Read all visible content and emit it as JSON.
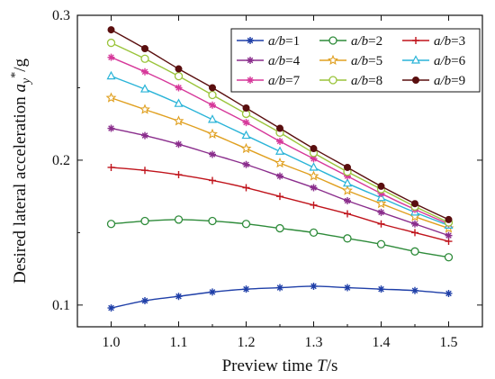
{
  "chart_data": {
    "type": "line",
    "xlabel": "Preview time T/s",
    "ylabel": "Desired lateral acceleration a_y*/g",
    "xlim": [
      0.95,
      1.55
    ],
    "ylim": [
      0.085,
      0.3
    ],
    "xticks": [
      "1.0",
      "1.1",
      "1.2",
      "1.3",
      "1.4",
      "1.5"
    ],
    "yticks": [
      "0.1",
      "0.2",
      "0.3"
    ],
    "legend_position": "top-right",
    "grid": false,
    "x": [
      1.0,
      1.05,
      1.1,
      1.15,
      1.2,
      1.25,
      1.3,
      1.35,
      1.4,
      1.45,
      1.5
    ],
    "series": [
      {
        "name": "a/b=1",
        "color": "#1f3fa8",
        "marker": "asterisk",
        "values": [
          0.098,
          0.103,
          0.106,
          0.109,
          0.111,
          0.112,
          0.113,
          0.112,
          0.111,
          0.11,
          0.108
        ]
      },
      {
        "name": "a/b=2",
        "color": "#2e8b3a",
        "marker": "circle",
        "values": [
          0.156,
          0.158,
          0.159,
          0.158,
          0.156,
          0.153,
          0.15,
          0.146,
          0.142,
          0.137,
          0.133
        ]
      },
      {
        "name": "a/b=3",
        "color": "#c0141c",
        "marker": "plus",
        "values": [
          0.195,
          0.193,
          0.19,
          0.186,
          0.181,
          0.175,
          0.169,
          0.163,
          0.156,
          0.15,
          0.144
        ]
      },
      {
        "name": "a/b=4",
        "color": "#8a2d8c",
        "marker": "asterisk",
        "values": [
          0.222,
          0.217,
          0.211,
          0.204,
          0.197,
          0.189,
          0.181,
          0.172,
          0.164,
          0.156,
          0.148
        ]
      },
      {
        "name": "a/b=5",
        "color": "#e0a020",
        "marker": "star",
        "values": [
          0.243,
          0.235,
          0.227,
          0.218,
          0.208,
          0.198,
          0.189,
          0.179,
          0.17,
          0.161,
          0.153
        ]
      },
      {
        "name": "a/b=6",
        "color": "#2ab4d8",
        "marker": "triangle",
        "values": [
          0.258,
          0.249,
          0.239,
          0.228,
          0.217,
          0.206,
          0.195,
          0.184,
          0.174,
          0.164,
          0.155
        ]
      },
      {
        "name": "a/b=7",
        "color": "#d6389a",
        "marker": "asterisk",
        "values": [
          0.271,
          0.261,
          0.25,
          0.238,
          0.226,
          0.213,
          0.201,
          0.189,
          0.177,
          0.166,
          0.156
        ]
      },
      {
        "name": "a/b=8",
        "color": "#9ac43a",
        "marker": "circle",
        "values": [
          0.281,
          0.27,
          0.258,
          0.245,
          0.232,
          0.219,
          0.205,
          0.192,
          0.18,
          0.168,
          0.157
        ]
      },
      {
        "name": "a/b=9",
        "color": "#5a0f0f",
        "marker": "dot",
        "values": [
          0.29,
          0.277,
          0.263,
          0.25,
          0.236,
          0.222,
          0.208,
          0.195,
          0.182,
          0.17,
          0.159
        ]
      }
    ]
  }
}
